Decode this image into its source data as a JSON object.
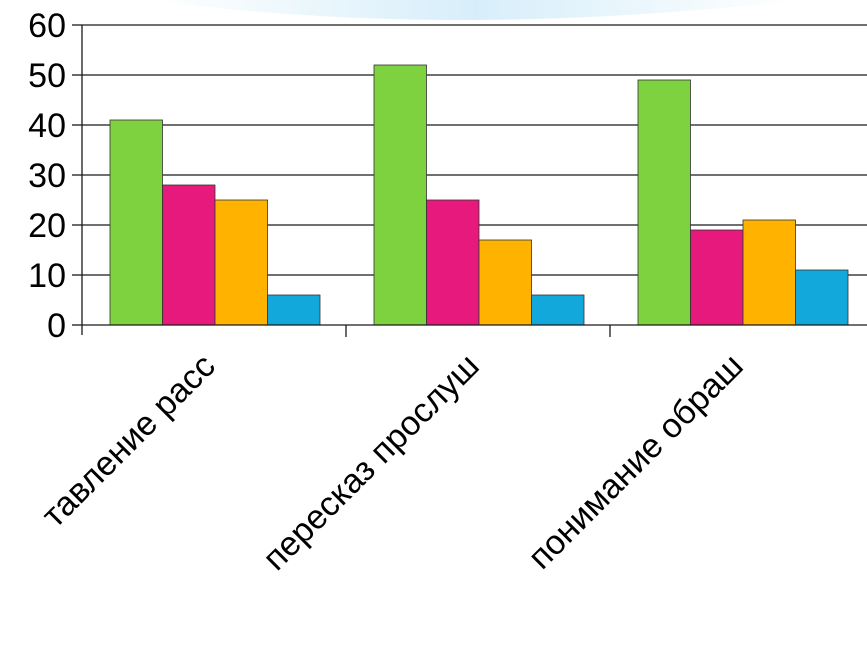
{
  "chart_data": {
    "type": "bar",
    "categories": [
      "тавление расс",
      "пересказ прослуш",
      "понимание обраш"
    ],
    "series": [
      {
        "color": "#7ed23f",
        "values": [
          41,
          52,
          49
        ]
      },
      {
        "color": "#e8197d",
        "values": [
          28,
          25,
          19
        ]
      },
      {
        "color": "#ffb300",
        "values": [
          25,
          17,
          21
        ]
      },
      {
        "color": "#12a8dc",
        "values": [
          6,
          6,
          11
        ]
      }
    ],
    "y_ticks": [
      "0",
      "10",
      "20",
      "30",
      "40",
      "50",
      "60"
    ],
    "ylim": [
      0,
      60
    ],
    "grid": true,
    "legend": "none",
    "xlabel": "",
    "ylabel": ""
  }
}
